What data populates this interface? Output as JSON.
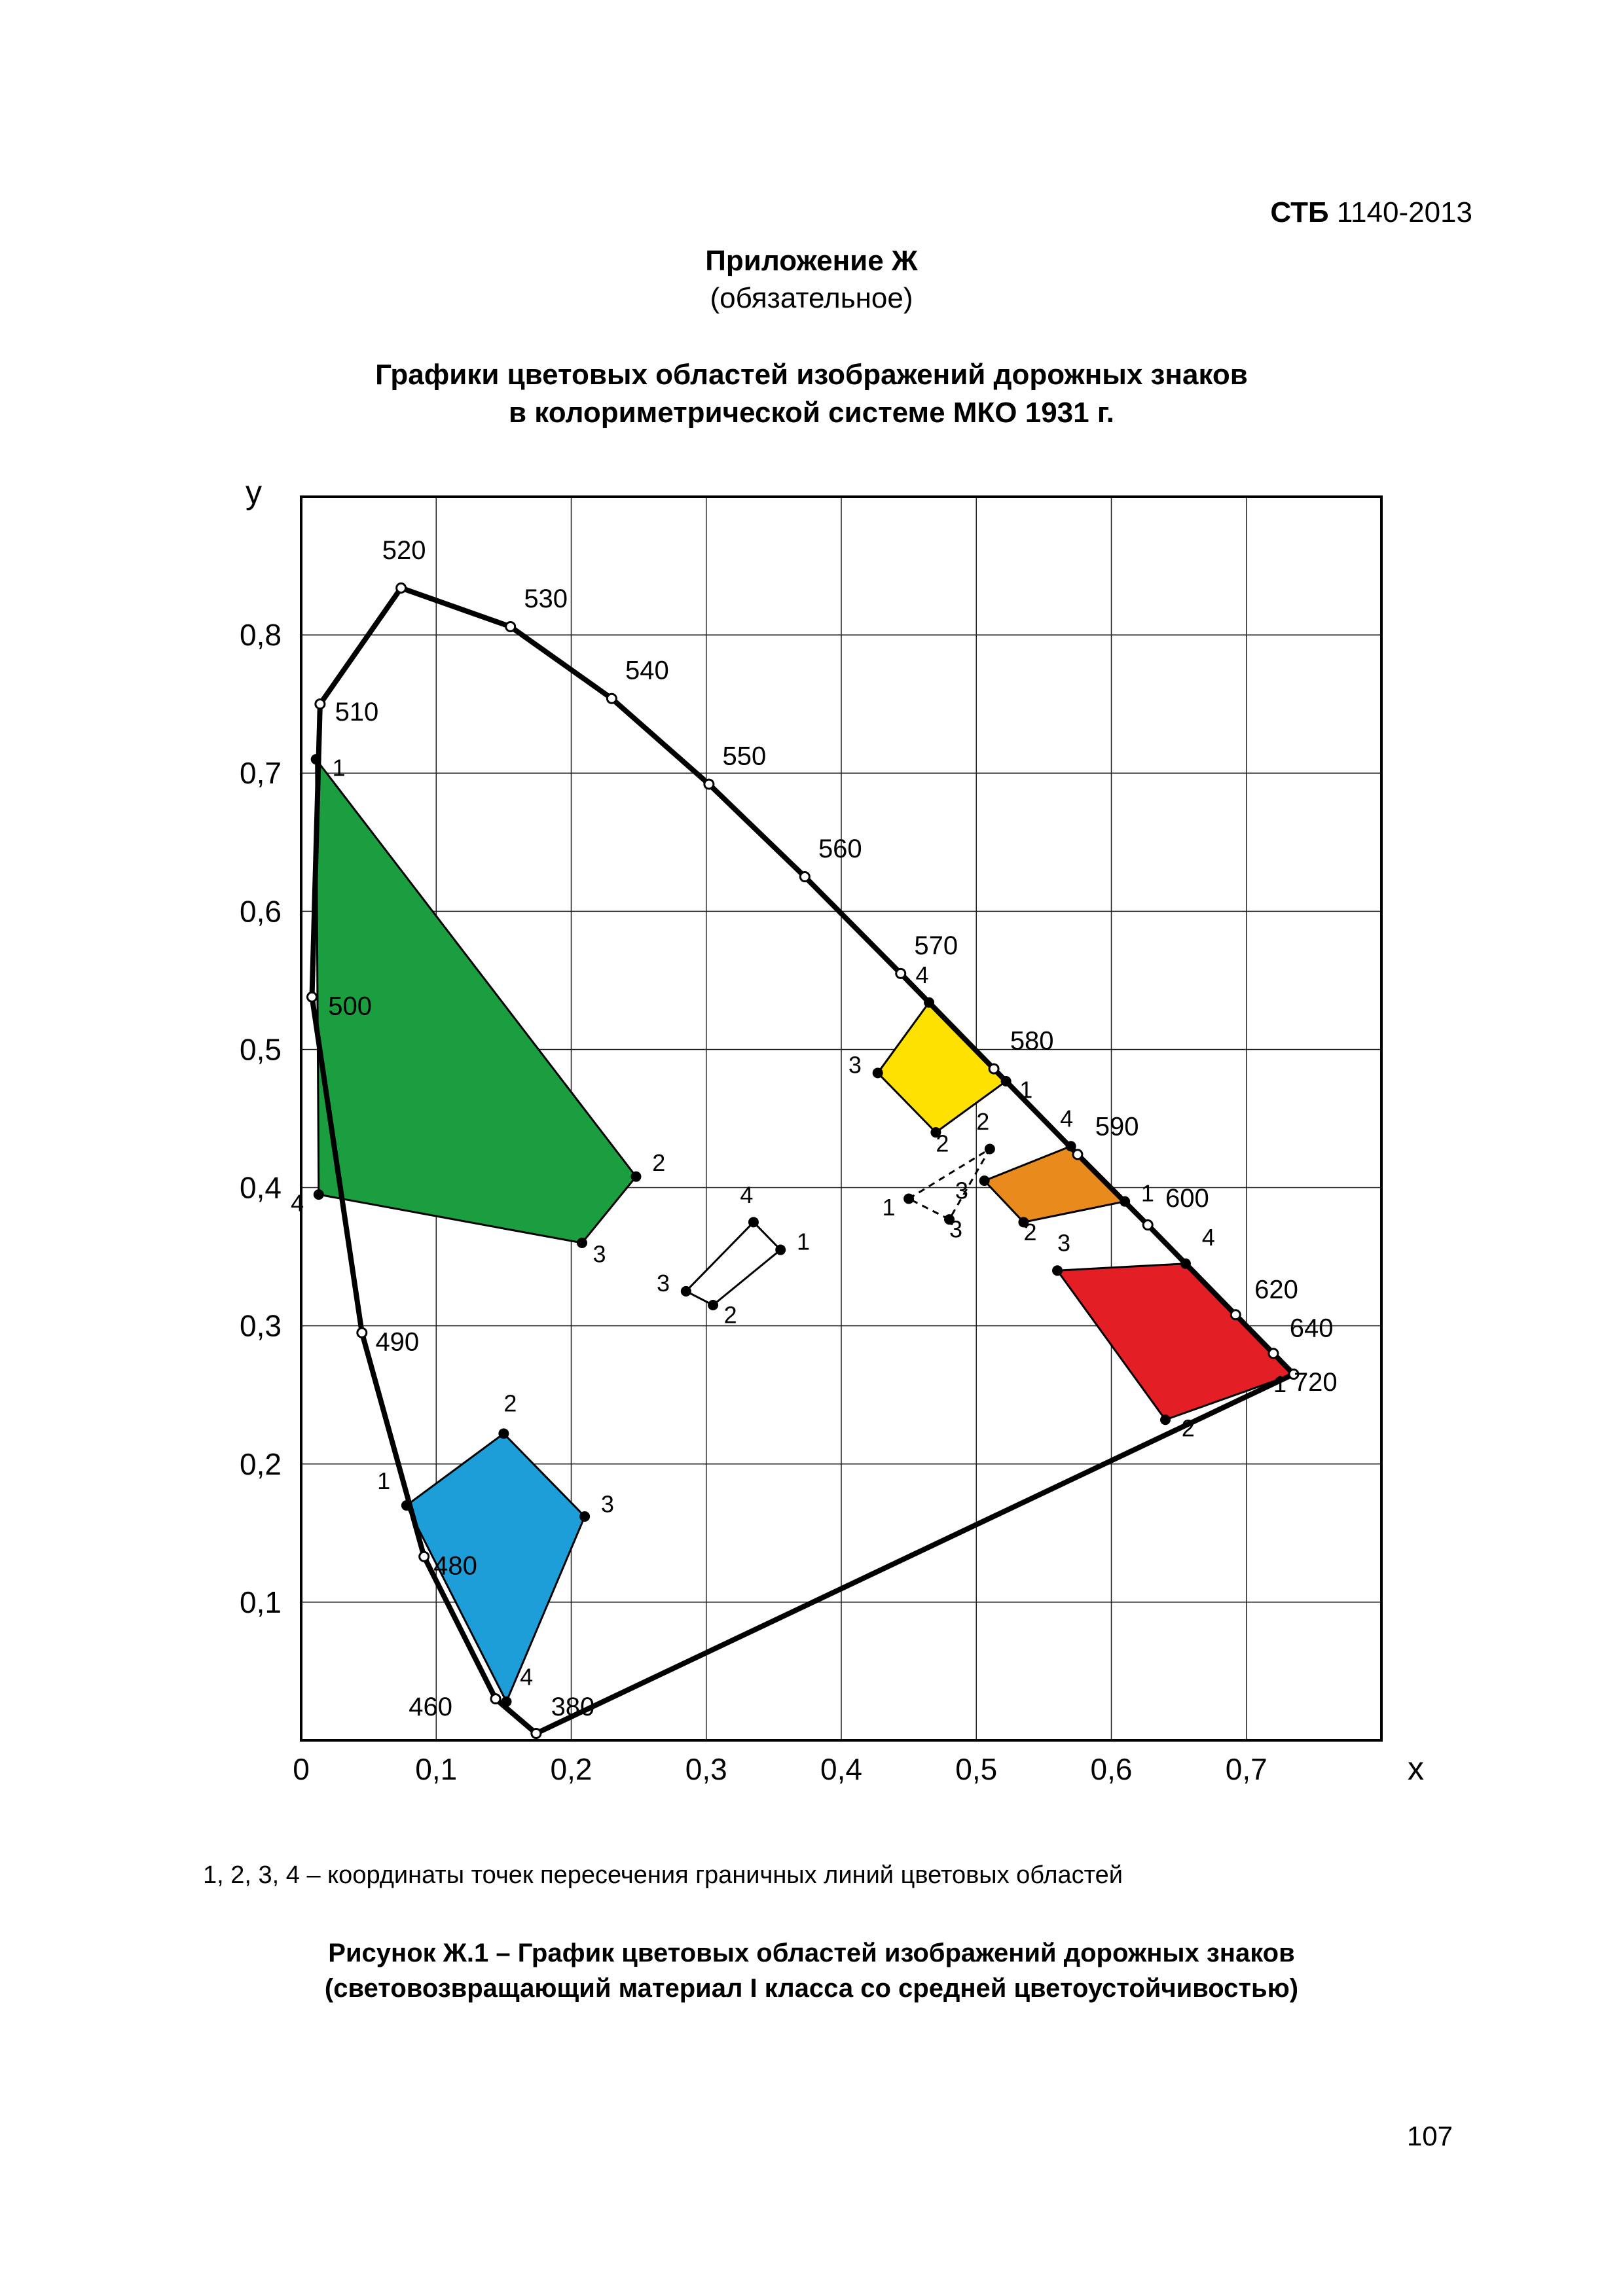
{
  "doc": {
    "standard_prefix": "СТБ",
    "standard_number": "1140-2013",
    "appendix_label": "Приложение Ж",
    "appendix_note": "(обязательное)",
    "section_title_line1": "Графики цветовых областей изображений дорожных знаков",
    "section_title_line2": "в колориметрической системе МКО 1931 г.",
    "footnote": "1, 2, 3, 4 – координаты точек пересечения граничных линий цветовых областей",
    "figure_caption_line1": "Рисунок Ж.1 –  График цветовых областей изображений дорожных знаков",
    "figure_caption_line2": "(световозвращающий материал I класса со средней цветоустойчивостью)",
    "page_number": "107"
  },
  "chart": {
    "background_color": "#ffffff",
    "border_color": "#000000",
    "grid_color": "#231f20",
    "grid_stroke_width": 1.5,
    "axis_stroke_width": 4,
    "axis_label_x": "x",
    "axis_label_y": "y",
    "axis_label_fontsize": 50,
    "tick_fontsize": 46,
    "xlim": [
      0,
      0.8
    ],
    "ylim": [
      0,
      0.9
    ],
    "xticks": [
      "0",
      "0,1",
      "0,2",
      "0,3",
      "0,4",
      "0,5",
      "0,6",
      "0,7"
    ],
    "xticks_vals": [
      0,
      0.1,
      0.2,
      0.3,
      0.4,
      0.5,
      0.6,
      0.7
    ],
    "yticks": [
      "0,1",
      "0,2",
      "0,3",
      "0,4",
      "0,5",
      "0,6",
      "0,7",
      "0,8"
    ],
    "yticks_vals": [
      0.1,
      0.2,
      0.3,
      0.4,
      0.5,
      0.6,
      0.7,
      0.8
    ],
    "locus": {
      "stroke": "#000000",
      "stroke_width": 8,
      "marker_radius": 7,
      "marker_fill": "#ffffff",
      "label_fontsize": 40,
      "points": [
        {
          "wl": "380",
          "x": 0.174,
          "y": 0.005,
          "lx": 0.185,
          "ly": 0.018
        },
        {
          "wl": "460",
          "x": 0.144,
          "y": 0.03,
          "lx": 0.112,
          "ly": 0.018,
          "anchor": "end"
        },
        {
          "wl": "480",
          "x": 0.091,
          "y": 0.133,
          "lx": 0.098,
          "ly": 0.12
        },
        {
          "wl": "490",
          "x": 0.045,
          "y": 0.295,
          "lx": 0.055,
          "ly": 0.282
        },
        {
          "wl": "500",
          "x": 0.008,
          "y": 0.538,
          "lx": 0.02,
          "ly": 0.525
        },
        {
          "wl": "510",
          "x": 0.014,
          "y": 0.75,
          "lx": 0.025,
          "ly": 0.738
        },
        {
          "wl": "520",
          "x": 0.074,
          "y": 0.834,
          "lx": 0.06,
          "ly": 0.855
        },
        {
          "wl": "530",
          "x": 0.155,
          "y": 0.806,
          "lx": 0.165,
          "ly": 0.82
        },
        {
          "wl": "540",
          "x": 0.23,
          "y": 0.754,
          "lx": 0.24,
          "ly": 0.768
        },
        {
          "wl": "550",
          "x": 0.302,
          "y": 0.692,
          "lx": 0.312,
          "ly": 0.706
        },
        {
          "wl": "560",
          "x": 0.373,
          "y": 0.625,
          "lx": 0.383,
          "ly": 0.639
        },
        {
          "wl": "570",
          "x": 0.444,
          "y": 0.555,
          "lx": 0.454,
          "ly": 0.569
        },
        {
          "wl": "580",
          "x": 0.513,
          "y": 0.486,
          "lx": 0.525,
          "ly": 0.5
        },
        {
          "wl": "590",
          "x": 0.575,
          "y": 0.424,
          "lx": 0.588,
          "ly": 0.438
        },
        {
          "wl": "600",
          "x": 0.627,
          "y": 0.373,
          "lx": 0.64,
          "ly": 0.386
        },
        {
          "wl": "620",
          "x": 0.692,
          "y": 0.308,
          "lx": 0.706,
          "ly": 0.32
        },
        {
          "wl": "640",
          "x": 0.72,
          "y": 0.28,
          "lx": 0.732,
          "ly": 0.292
        },
        {
          "wl": "720",
          "x": 0.735,
          "y": 0.265,
          "lx": 0.735,
          "ly": 0.253
        }
      ]
    },
    "regions": [
      {
        "name": "green",
        "fill": "#1b9e3f",
        "stroke": "#000000",
        "stroke_width": 3,
        "vertex_radius": 8,
        "vertex_fill": "#000000",
        "label_fontsize": 36,
        "points": [
          {
            "n": "1",
            "x": 0.011,
            "y": 0.71,
            "lx": 0.023,
            "ly": 0.698
          },
          {
            "n": "2",
            "x": 0.248,
            "y": 0.408,
            "lx": 0.26,
            "ly": 0.412
          },
          {
            "n": "3",
            "x": 0.208,
            "y": 0.36,
            "lx": 0.216,
            "ly": 0.346
          },
          {
            "n": "4",
            "x": 0.013,
            "y": 0.395,
            "lx": 0.002,
            "ly": 0.383,
            "anchor": "end"
          }
        ]
      },
      {
        "name": "blue",
        "fill": "#1d9ed9",
        "stroke": "#000000",
        "stroke_width": 3,
        "vertex_radius": 8,
        "vertex_fill": "#000000",
        "label_fontsize": 36,
        "points": [
          {
            "n": "1",
            "x": 0.078,
            "y": 0.17,
            "lx": 0.066,
            "ly": 0.182,
            "anchor": "end"
          },
          {
            "n": "2",
            "x": 0.15,
            "y": 0.222,
            "lx": 0.15,
            "ly": 0.238
          },
          {
            "n": "3",
            "x": 0.21,
            "y": 0.162,
            "lx": 0.222,
            "ly": 0.165
          },
          {
            "n": "4",
            "x": 0.152,
            "y": 0.028,
            "lx": 0.162,
            "ly": 0.04
          }
        ]
      },
      {
        "name": "yellow",
        "fill": "#ffe100",
        "stroke": "#000000",
        "stroke_width": 3,
        "vertex_radius": 8,
        "vertex_fill": "#000000",
        "label_fontsize": 36,
        "points": [
          {
            "n": "1",
            "x": 0.522,
            "y": 0.477,
            "lx": 0.532,
            "ly": 0.465
          },
          {
            "n": "2",
            "x": 0.47,
            "y": 0.44,
            "lx": 0.47,
            "ly": 0.426
          },
          {
            "n": "3",
            "x": 0.427,
            "y": 0.483,
            "lx": 0.415,
            "ly": 0.483,
            "anchor": "end"
          },
          {
            "n": "4",
            "x": 0.465,
            "y": 0.534,
            "lx": 0.455,
            "ly": 0.548
          }
        ]
      },
      {
        "name": "orange-solid",
        "fill": "#e98a1d",
        "stroke": "#000000",
        "stroke_width": 3,
        "vertex_radius": 8,
        "vertex_fill": "#000000",
        "label_fontsize": 36,
        "points": [
          {
            "n": "1",
            "x": 0.61,
            "y": 0.39,
            "lx": 0.622,
            "ly": 0.39
          },
          {
            "n": "2",
            "x": 0.535,
            "y": 0.375,
            "lx": 0.535,
            "ly": 0.362
          },
          {
            "n": "3",
            "x": 0.506,
            "y": 0.405,
            "lx": 0.494,
            "ly": 0.392,
            "anchor": "end"
          },
          {
            "n": "4",
            "x": 0.57,
            "y": 0.43,
            "lx": 0.562,
            "ly": 0.444
          }
        ]
      },
      {
        "name": "orange-dashed",
        "fill": "none",
        "stroke": "#000000",
        "stroke_width": 3,
        "stroke_dasharray": "10 8",
        "vertex_radius": 8,
        "vertex_fill": "#000000",
        "label_fontsize": 36,
        "points": [
          {
            "n": "1",
            "x": 0.45,
            "y": 0.392,
            "lx": 0.44,
            "ly": 0.38,
            "anchor": "end"
          },
          {
            "n": "2",
            "x": 0.51,
            "y": 0.428,
            "lx": 0.5,
            "ly": 0.442
          },
          {
            "n": "3",
            "x": 0.48,
            "y": 0.377,
            "lx": 0.48,
            "ly": 0.364
          }
        ]
      },
      {
        "name": "red",
        "fill": "#e31e25",
        "stroke": "#000000",
        "stroke_width": 3,
        "vertex_radius": 8,
        "vertex_fill": "#000000",
        "label_fontsize": 36,
        "points": [
          {
            "n": "1",
            "x": 0.735,
            "y": 0.265,
            "lx": 0.72,
            "ly": 0.252
          },
          {
            "n": "2",
            "x": 0.64,
            "y": 0.232,
            "lx": 0.652,
            "ly": 0.22
          },
          {
            "n": "3",
            "x": 0.56,
            "y": 0.34,
            "lx": 0.56,
            "ly": 0.354
          },
          {
            "n": "4",
            "x": 0.655,
            "y": 0.345,
            "lx": 0.667,
            "ly": 0.358
          }
        ]
      },
      {
        "name": "white",
        "fill": "#ffffff",
        "stroke": "#000000",
        "stroke_width": 3,
        "vertex_radius": 8,
        "vertex_fill": "#000000",
        "label_fontsize": 36,
        "points": [
          {
            "n": "1",
            "x": 0.355,
            "y": 0.355,
            "lx": 0.367,
            "ly": 0.355
          },
          {
            "n": "2",
            "x": 0.305,
            "y": 0.315,
            "lx": 0.313,
            "ly": 0.302
          },
          {
            "n": "3",
            "x": 0.285,
            "y": 0.325,
            "lx": 0.273,
            "ly": 0.325,
            "anchor": "end"
          },
          {
            "n": "4",
            "x": 0.335,
            "y": 0.375,
            "lx": 0.325,
            "ly": 0.389
          }
        ]
      }
    ]
  }
}
